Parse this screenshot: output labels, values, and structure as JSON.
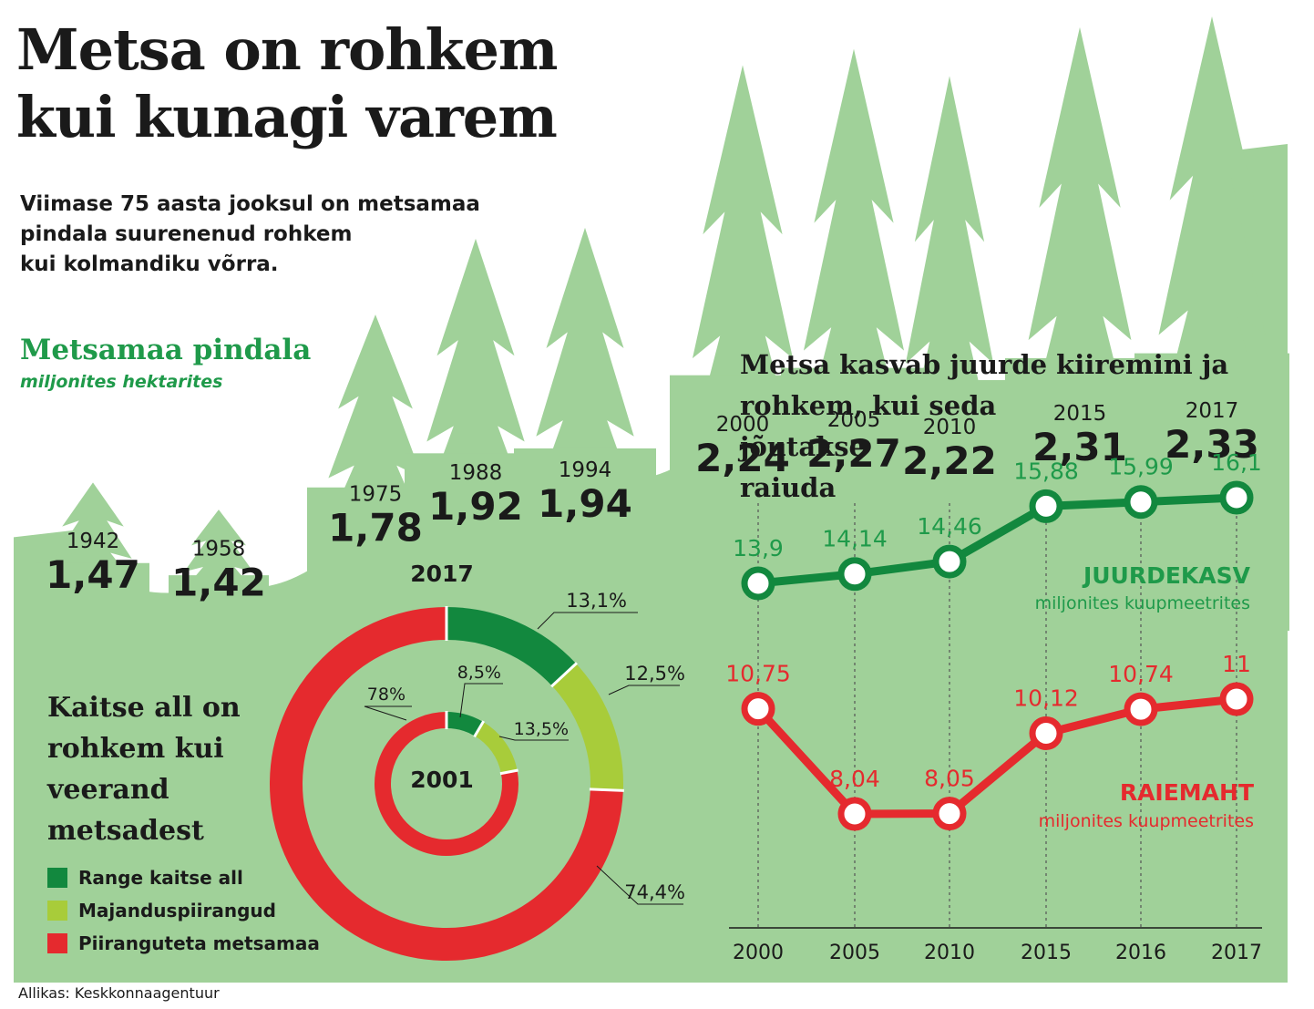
{
  "title": {
    "line1": "Metsa on rohkem",
    "line2": "kui kunagi varem"
  },
  "subtitle": {
    "line1": "Viimase 75 aasta jooksul on metsamaa",
    "line2": "pindala suurenenud rohkem",
    "line3": "kui kolmandiku võrra."
  },
  "area_section": {
    "title": "Metsamaa pindala",
    "unit": "miljonites hektarites"
  },
  "growth_section": {
    "line1": "Metsa kasvab juurde kiiremini ja",
    "line2": "rohkem, kui seda",
    "line3": "jõutakse",
    "line4": "raiuda"
  },
  "protection_section": {
    "line1": "Kaitse all on",
    "line2": "rohkem kui",
    "line3": "veerand",
    "line4": "metsadest"
  },
  "legend": [
    {
      "label": "Range kaitse all",
      "color": "#12883e"
    },
    {
      "label": "Majanduspiirangud",
      "color": "#a8cc3a"
    },
    {
      "label": "Piiranguteta metsamaa",
      "color": "#e52a2e"
    }
  ],
  "source": "Allikas: Keskkonnaagentuur",
  "colors": {
    "tree_green": "#a0d199",
    "dark_green": "#12883e",
    "text_green": "#1f9a4a",
    "light_green": "#a8cc3a",
    "red": "#e52a2e"
  },
  "chart_data": [
    {
      "type": "bar",
      "title": "Metsamaa pindala",
      "subtitle": "miljonites hektarites",
      "categories": [
        "1942",
        "1958",
        "1975",
        "1988",
        "1994",
        "2000",
        "2005",
        "2010",
        "2015",
        "2017"
      ],
      "values": [
        1.47,
        1.42,
        1.78,
        1.92,
        1.94,
        2.24,
        2.27,
        2.22,
        2.31,
        2.33
      ],
      "value_labels": [
        "1,47",
        "1,42",
        "1,78",
        "1,92",
        "1,94",
        "2,24",
        "2,27",
        "2,22",
        "2,31",
        "2,33"
      ],
      "mark": "tree-icon"
    },
    {
      "type": "pie",
      "title": "Kaitse all on rohkem kui veerand metsadest",
      "rings": [
        {
          "name": "2017",
          "values": [
            13.1,
            12.5,
            74.4
          ],
          "labels": [
            "13,1%",
            "12,5%",
            "74,4%"
          ]
        },
        {
          "name": "2001",
          "values": [
            8.5,
            13.5,
            78
          ],
          "labels": [
            "8,5%",
            "13,5%",
            "78%"
          ]
        }
      ],
      "categories": [
        "Range kaitse all",
        "Majanduspiirangud",
        "Piiranguteta metsamaa"
      ]
    },
    {
      "type": "line",
      "title": "Metsa kasvab juurde kiiremini ja rohkem, kui seda jõutakse raiuda",
      "x": [
        "2000",
        "2005",
        "2010",
        "2015",
        "2016",
        "2017"
      ],
      "series": [
        {
          "name": "JUURDEKASV",
          "unit": "miljonites kuupmeetrites",
          "values": [
            13.9,
            14.14,
            14.46,
            15.88,
            15.99,
            16.1
          ],
          "labels": [
            "13,9",
            "14,14",
            "14,46",
            "15,88",
            "15,99",
            "16,1"
          ]
        },
        {
          "name": "RAIEMAHT",
          "unit": "miljonites kuupmeetrites",
          "values": [
            10.75,
            8.04,
            8.05,
            10.12,
            10.74,
            11
          ],
          "labels": [
            "10,75",
            "8,04",
            "8,05",
            "10,12",
            "10,74",
            "11"
          ]
        }
      ],
      "grid": "vertical-dotted"
    }
  ]
}
